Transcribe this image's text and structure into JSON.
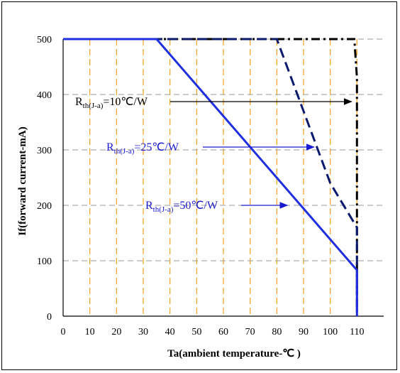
{
  "chart_data": {
    "type": "line",
    "title": "",
    "xlabel": "Ta(ambient temperature-℃ )",
    "ylabel": "If(forward current-mA)",
    "xlim": [
      0,
      120
    ],
    "ylim": [
      0,
      500
    ],
    "x_ticks": [
      "0",
      "10",
      "20",
      "30",
      "40",
      "50",
      "60",
      "70",
      "80",
      "90",
      "100",
      "110"
    ],
    "y_ticks": [
      "0",
      "100",
      "200",
      "300",
      "400",
      "500"
    ],
    "grid": {
      "vertical": true,
      "horizontal": true
    },
    "series": [
      {
        "id": "r10",
        "style": "dash-dot",
        "color": "#000000",
        "x": [
          0,
          109,
          110,
          110
        ],
        "y": [
          500,
          500,
          430,
          0
        ]
      },
      {
        "id": "r25",
        "style": "dashed",
        "color": "#0a1a6e",
        "x": [
          0,
          80,
          90,
          100,
          110,
          110
        ],
        "y": [
          500,
          500,
          370,
          240,
          160,
          0
        ]
      },
      {
        "id": "r50",
        "style": "solid",
        "color": "#1f2fe0",
        "x": [
          0,
          35,
          110,
          110
        ],
        "y": [
          500,
          500,
          83,
          0
        ]
      }
    ],
    "annotations": [
      {
        "id": "ann-r10",
        "main": "R",
        "sub": "th(J-a)",
        "rest": "=10℃/W",
        "color": "#000000",
        "arrow_to": [
          109,
          384
        ]
      },
      {
        "id": "ann-r25",
        "main": "R",
        "sub": "th(J-a)",
        "rest": "=25℃/W",
        "color": "#1a1ad0",
        "arrow_to": [
          95,
          300
        ]
      },
      {
        "id": "ann-r50",
        "main": "R",
        "sub": "th(J-a)",
        "rest": "=50℃/W",
        "color": "#1a1ad0",
        "arrow_to": [
          85,
          200
        ]
      }
    ]
  }
}
